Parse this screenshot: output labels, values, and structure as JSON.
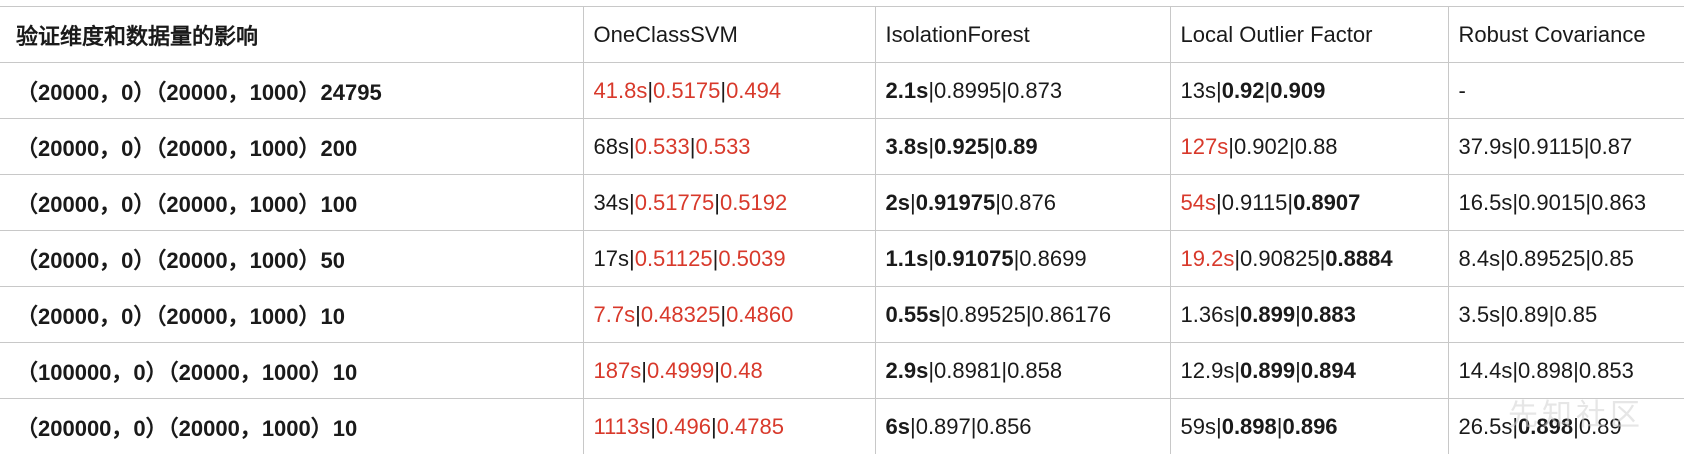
{
  "header": {
    "row_label": "验证维度和数据量的影响",
    "columns": [
      "OneClassSVM",
      "IsolationForest",
      "Local Outlier Factor",
      "Robust Covariance"
    ]
  },
  "rows": [
    {
      "label": "（20000，0）（20000，1000）24795",
      "cells": [
        [
          {
            "t": "41.8s",
            "s": "red"
          },
          {
            "t": "|",
            "s": "sep"
          },
          {
            "t": "0.5175",
            "s": "red"
          },
          {
            "t": "|",
            "s": "sep"
          },
          {
            "t": "0.494",
            "s": "red"
          }
        ],
        [
          {
            "t": "2.1s",
            "s": "bold"
          },
          {
            "t": "|",
            "s": "sep"
          },
          {
            "t": "0.8995",
            "s": ""
          },
          {
            "t": "|",
            "s": "sep"
          },
          {
            "t": "0.873",
            "s": ""
          }
        ],
        [
          {
            "t": "13s",
            "s": ""
          },
          {
            "t": "|",
            "s": "sep"
          },
          {
            "t": "0.92",
            "s": "bold"
          },
          {
            "t": "|",
            "s": "sep"
          },
          {
            "t": "0.909",
            "s": "bold"
          }
        ],
        [
          {
            "t": "-",
            "s": ""
          }
        ]
      ]
    },
    {
      "label": "（20000，0）（20000，1000）200",
      "cells": [
        [
          {
            "t": "68s",
            "s": ""
          },
          {
            "t": "|",
            "s": "sep"
          },
          {
            "t": "0.533",
            "s": "red"
          },
          {
            "t": "|",
            "s": "sep"
          },
          {
            "t": "0.533",
            "s": "red"
          }
        ],
        [
          {
            "t": "3.8s",
            "s": "bold"
          },
          {
            "t": "|",
            "s": "sep"
          },
          {
            "t": "0.925",
            "s": "bold"
          },
          {
            "t": "|",
            "s": "sep"
          },
          {
            "t": "0.89",
            "s": "bold"
          }
        ],
        [
          {
            "t": "127s",
            "s": "red"
          },
          {
            "t": "|",
            "s": "sep"
          },
          {
            "t": "0.902",
            "s": ""
          },
          {
            "t": "|",
            "s": "sep"
          },
          {
            "t": "0.88",
            "s": ""
          }
        ],
        [
          {
            "t": "37.9s",
            "s": ""
          },
          {
            "t": "|",
            "s": "sep"
          },
          {
            "t": "0.9115",
            "s": ""
          },
          {
            "t": "|",
            "s": "sep"
          },
          {
            "t": "0.87",
            "s": ""
          }
        ]
      ]
    },
    {
      "label": "（20000，0）（20000，1000）100",
      "cells": [
        [
          {
            "t": "34s",
            "s": ""
          },
          {
            "t": "|",
            "s": "sep"
          },
          {
            "t": "0.51775",
            "s": "red"
          },
          {
            "t": "|",
            "s": "sep"
          },
          {
            "t": "0.5192",
            "s": "red"
          }
        ],
        [
          {
            "t": "2s",
            "s": "bold"
          },
          {
            "t": "|",
            "s": "sep"
          },
          {
            "t": "0.91975",
            "s": "bold"
          },
          {
            "t": "|",
            "s": "sep"
          },
          {
            "t": "0.876",
            "s": ""
          }
        ],
        [
          {
            "t": "54s",
            "s": "red"
          },
          {
            "t": "|",
            "s": "sep"
          },
          {
            "t": "0.9115",
            "s": ""
          },
          {
            "t": "|",
            "s": "sep"
          },
          {
            "t": "0.8907",
            "s": "bold"
          }
        ],
        [
          {
            "t": "16.5s",
            "s": ""
          },
          {
            "t": "|",
            "s": "sep"
          },
          {
            "t": "0.9015",
            "s": ""
          },
          {
            "t": "|",
            "s": "sep"
          },
          {
            "t": "0.863",
            "s": ""
          }
        ]
      ]
    },
    {
      "label": "（20000，0）（20000，1000）50",
      "cells": [
        [
          {
            "t": "17s",
            "s": ""
          },
          {
            "t": "|",
            "s": "sep"
          },
          {
            "t": "0.51125",
            "s": "red"
          },
          {
            "t": "|",
            "s": "sep"
          },
          {
            "t": "0.5039",
            "s": "red"
          }
        ],
        [
          {
            "t": "1.1s",
            "s": "bold"
          },
          {
            "t": "|",
            "s": "sep"
          },
          {
            "t": "0.91075",
            "s": "bold"
          },
          {
            "t": "|",
            "s": "sep"
          },
          {
            "t": "0.8699",
            "s": ""
          }
        ],
        [
          {
            "t": "19.2s",
            "s": "red"
          },
          {
            "t": "|",
            "s": "sep"
          },
          {
            "t": "0.90825",
            "s": ""
          },
          {
            "t": "|",
            "s": "sep"
          },
          {
            "t": "0.8884",
            "s": "bold"
          }
        ],
        [
          {
            "t": "8.4s",
            "s": ""
          },
          {
            "t": "|",
            "s": "sep"
          },
          {
            "t": "0.89525",
            "s": ""
          },
          {
            "t": "|",
            "s": "sep"
          },
          {
            "t": "0.85",
            "s": ""
          }
        ]
      ]
    },
    {
      "label": "（20000，0）（20000，1000）10",
      "cells": [
        [
          {
            "t": "7.7s",
            "s": "red"
          },
          {
            "t": "|",
            "s": "sep"
          },
          {
            "t": "0.48325",
            "s": "red"
          },
          {
            "t": "|",
            "s": "sep"
          },
          {
            "t": "0.4860",
            "s": "red"
          }
        ],
        [
          {
            "t": "0.55s",
            "s": "bold"
          },
          {
            "t": "|",
            "s": "sep"
          },
          {
            "t": "0.89525",
            "s": ""
          },
          {
            "t": "|",
            "s": "sep"
          },
          {
            "t": "0.86176",
            "s": ""
          }
        ],
        [
          {
            "t": "1.36s",
            "s": ""
          },
          {
            "t": "|",
            "s": "sep"
          },
          {
            "t": "0.899",
            "s": "bold"
          },
          {
            "t": "|",
            "s": "sep"
          },
          {
            "t": "0.883",
            "s": "bold"
          }
        ],
        [
          {
            "t": "3.5s",
            "s": ""
          },
          {
            "t": "|",
            "s": "sep"
          },
          {
            "t": "0.89",
            "s": ""
          },
          {
            "t": "|",
            "s": "sep"
          },
          {
            "t": "0.85",
            "s": ""
          }
        ]
      ]
    },
    {
      "label": "（100000，0）（20000，1000）10",
      "cells": [
        [
          {
            "t": "187s",
            "s": "red"
          },
          {
            "t": "|",
            "s": "sep"
          },
          {
            "t": "0.4999",
            "s": "red"
          },
          {
            "t": "|",
            "s": "sep"
          },
          {
            "t": "0.48",
            "s": "red"
          }
        ],
        [
          {
            "t": "2.9s",
            "s": "bold"
          },
          {
            "t": "|",
            "s": "sep"
          },
          {
            "t": "0.8981",
            "s": ""
          },
          {
            "t": "|",
            "s": "sep"
          },
          {
            "t": "0.858",
            "s": ""
          }
        ],
        [
          {
            "t": "12.9s",
            "s": ""
          },
          {
            "t": "|",
            "s": "sep"
          },
          {
            "t": "0.899",
            "s": "bold"
          },
          {
            "t": "|",
            "s": "sep"
          },
          {
            "t": "0.894",
            "s": "bold"
          }
        ],
        [
          {
            "t": "14.4s",
            "s": ""
          },
          {
            "t": "|",
            "s": "sep"
          },
          {
            "t": "0.898",
            "s": ""
          },
          {
            "t": "|",
            "s": "sep"
          },
          {
            "t": "0.853",
            "s": ""
          }
        ]
      ]
    },
    {
      "label": "（200000，0）（20000，1000）10",
      "cells": [
        [
          {
            "t": "1113s",
            "s": "red"
          },
          {
            "t": "|",
            "s": "sep"
          },
          {
            "t": "0.496",
            "s": "red"
          },
          {
            "t": "|",
            "s": "sep"
          },
          {
            "t": "0.4785",
            "s": "red"
          }
        ],
        [
          {
            "t": "6s",
            "s": "bold"
          },
          {
            "t": "|",
            "s": "sep"
          },
          {
            "t": "0.897",
            "s": ""
          },
          {
            "t": "|",
            "s": "sep"
          },
          {
            "t": "0.856",
            "s": ""
          }
        ],
        [
          {
            "t": "59s",
            "s": ""
          },
          {
            "t": "|",
            "s": "sep"
          },
          {
            "t": "0.898",
            "s": "bold"
          },
          {
            "t": "|",
            "s": "sep"
          },
          {
            "t": "0.896",
            "s": "bold"
          }
        ],
        [
          {
            "t": "26.5s",
            "s": ""
          },
          {
            "t": "|",
            "s": "sep"
          },
          {
            "t": "0.898",
            "s": "bold"
          },
          {
            "t": "|",
            "s": "sep"
          },
          {
            "t": "0.89",
            "s": ""
          }
        ]
      ]
    }
  ],
  "watermark": "先知社区",
  "colors": {
    "highlight_red": "#d8392b",
    "grid": "#c8c8c8",
    "text": "#1a1a1a"
  }
}
